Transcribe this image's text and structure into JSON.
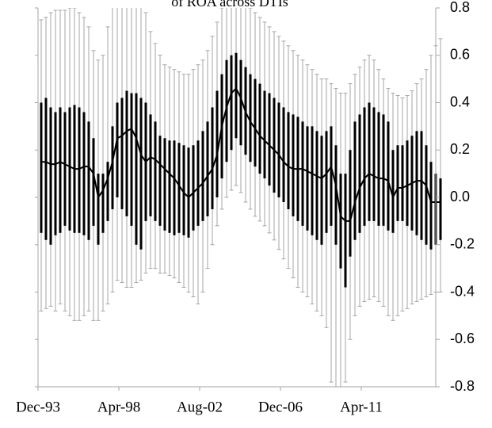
{
  "chart_data": {
    "type": "box",
    "title": "of ROA across DTIs",
    "categories": [
      "Dec-93",
      null,
      null,
      null,
      null,
      null,
      null,
      null,
      null,
      null,
      null,
      null,
      null,
      null,
      null,
      null,
      null,
      "Apr-98",
      null,
      null,
      null,
      null,
      null,
      null,
      null,
      null,
      null,
      null,
      null,
      null,
      null,
      null,
      null,
      null,
      "Aug-02",
      null,
      null,
      null,
      null,
      null,
      null,
      null,
      null,
      null,
      null,
      null,
      null,
      null,
      null,
      null,
      null,
      "Dec-06",
      null,
      null,
      null,
      null,
      null,
      null,
      null,
      null,
      null,
      null,
      null,
      null,
      null,
      null,
      null,
      null,
      "Apr-11",
      null,
      null,
      null,
      null,
      null,
      null,
      null,
      null,
      null,
      null,
      null,
      null,
      null,
      null,
      null,
      null
    ],
    "low": [
      -0.48,
      -0.47,
      -0.46,
      -0.48,
      -0.45,
      -0.48,
      -0.5,
      -0.52,
      -0.52,
      -0.5,
      -0.48,
      -0.52,
      -0.52,
      -0.48,
      -0.45,
      -0.4,
      -0.35,
      -0.36,
      -0.38,
      -0.38,
      -0.36,
      -0.35,
      -0.32,
      -0.3,
      -0.3,
      -0.32,
      -0.32,
      -0.33,
      -0.34,
      -0.36,
      -0.38,
      -0.4,
      -0.42,
      -0.45,
      -0.4,
      -0.3,
      -0.2,
      -0.12,
      -0.05,
      0.0,
      0.03,
      0.05,
      0.02,
      -0.02,
      -0.05,
      -0.08,
      -0.1,
      -0.12,
      -0.15,
      -0.18,
      -0.22,
      -0.26,
      -0.3,
      -0.34,
      -0.38,
      -0.4,
      -0.42,
      -0.45,
      -0.48,
      -0.5,
      -0.55,
      -0.78,
      -0.8,
      -0.8,
      -0.78,
      -0.6,
      -0.5,
      -0.46,
      -0.44,
      -0.43,
      -0.42,
      -0.44,
      -0.46,
      -0.5,
      -0.52,
      -0.5,
      -0.48,
      -0.47,
      -0.45,
      -0.44,
      -0.43,
      -0.42,
      -0.41,
      -0.4,
      -0.4
    ],
    "q1": [
      -0.15,
      -0.18,
      -0.2,
      -0.16,
      -0.15,
      -0.12,
      -0.14,
      -0.15,
      -0.15,
      -0.16,
      -0.18,
      -0.12,
      -0.2,
      -0.15,
      -0.1,
      -0.05,
      0.0,
      -0.05,
      -0.08,
      -0.12,
      -0.2,
      -0.22,
      -0.1,
      -0.08,
      -0.1,
      -0.12,
      -0.14,
      -0.15,
      -0.16,
      -0.15,
      -0.16,
      -0.17,
      -0.14,
      -0.12,
      -0.1,
      -0.08,
      -0.05,
      0.0,
      0.08,
      0.15,
      0.2,
      0.25,
      0.22,
      0.18,
      0.15,
      0.13,
      0.1,
      0.08,
      0.05,
      0.02,
      0.0,
      -0.02,
      -0.05,
      -0.08,
      -0.1,
      -0.12,
      -0.14,
      -0.16,
      -0.18,
      -0.2,
      -0.15,
      -0.12,
      -0.2,
      -0.3,
      -0.38,
      -0.25,
      -0.18,
      -0.15,
      -0.12,
      -0.1,
      -0.1,
      -0.12,
      -0.12,
      -0.14,
      -0.15,
      -0.1,
      -0.1,
      -0.12,
      -0.14,
      -0.16,
      -0.18,
      -0.2,
      -0.22,
      -0.2,
      -0.18
    ],
    "median": [
      0.15,
      0.15,
      0.14,
      0.14,
      0.15,
      0.14,
      0.13,
      0.12,
      0.12,
      0.13,
      0.13,
      0.1,
      0.0,
      0.03,
      0.08,
      0.15,
      0.25,
      0.26,
      0.28,
      0.29,
      0.25,
      0.18,
      0.15,
      0.17,
      0.16,
      0.14,
      0.12,
      0.1,
      0.08,
      0.05,
      0.02,
      0.0,
      0.02,
      0.04,
      0.06,
      0.09,
      0.12,
      0.18,
      0.3,
      0.38,
      0.44,
      0.46,
      0.42,
      0.36,
      0.32,
      0.29,
      0.26,
      0.24,
      0.22,
      0.2,
      0.18,
      0.15,
      0.13,
      0.12,
      0.12,
      0.12,
      0.11,
      0.1,
      0.09,
      0.08,
      0.1,
      0.13,
      0.05,
      -0.08,
      -0.1,
      -0.1,
      -0.02,
      0.04,
      0.08,
      0.1,
      0.09,
      0.08,
      0.08,
      0.07,
      0.0,
      0.04,
      0.04,
      0.05,
      0.06,
      0.07,
      0.07,
      0.05,
      -0.02,
      -0.02,
      -0.02
    ],
    "q3": [
      0.4,
      0.42,
      0.38,
      0.36,
      0.38,
      0.36,
      0.38,
      0.39,
      0.38,
      0.36,
      0.32,
      0.25,
      0.1,
      0.1,
      0.15,
      0.3,
      0.4,
      0.42,
      0.45,
      0.44,
      0.44,
      0.42,
      0.4,
      0.35,
      0.32,
      0.26,
      0.25,
      0.24,
      0.24,
      0.23,
      0.22,
      0.21,
      0.22,
      0.24,
      0.28,
      0.32,
      0.38,
      0.45,
      0.52,
      0.58,
      0.6,
      0.61,
      0.58,
      0.55,
      0.52,
      0.5,
      0.48,
      0.45,
      0.44,
      0.42,
      0.4,
      0.38,
      0.36,
      0.35,
      0.34,
      0.32,
      0.3,
      0.3,
      0.28,
      0.26,
      0.28,
      0.3,
      0.22,
      0.1,
      0.1,
      0.2,
      0.32,
      0.35,
      0.38,
      0.4,
      0.38,
      0.36,
      0.35,
      0.32,
      0.2,
      0.22,
      0.22,
      0.24,
      0.26,
      0.28,
      0.28,
      0.22,
      0.15,
      0.1,
      0.08
    ],
    "high": [
      0.75,
      0.76,
      0.78,
      0.79,
      0.79,
      0.79,
      0.8,
      0.8,
      0.78,
      0.76,
      0.72,
      0.62,
      0.58,
      0.6,
      0.72,
      0.85,
      0.85,
      0.85,
      0.85,
      0.85,
      0.85,
      0.82,
      0.78,
      0.7,
      0.65,
      0.6,
      0.56,
      0.55,
      0.54,
      0.53,
      0.52,
      0.52,
      0.54,
      0.56,
      0.58,
      0.62,
      0.68,
      0.74,
      0.8,
      0.85,
      0.85,
      0.85,
      0.85,
      0.82,
      0.8,
      0.78,
      0.76,
      0.74,
      0.72,
      0.7,
      0.68,
      0.66,
      0.64,
      0.62,
      0.6,
      0.58,
      0.56,
      0.54,
      0.52,
      0.5,
      0.5,
      0.48,
      0.46,
      0.44,
      0.44,
      0.48,
      0.52,
      0.55,
      0.58,
      0.6,
      0.58,
      0.54,
      0.5,
      0.46,
      0.44,
      0.43,
      0.42,
      0.43,
      0.45,
      0.48,
      0.5,
      0.54,
      0.6,
      0.64,
      0.67
    ],
    "ylim": [
      -0.8,
      0.8
    ],
    "yticks": [
      {
        "value": -0.8,
        "label": "-0.8"
      },
      {
        "value": -0.6,
        "label": "-0.6"
      },
      {
        "value": -0.4,
        "label": "-0.4"
      },
      {
        "value": -0.2,
        "label": "-0.2"
      },
      {
        "value": 0,
        "label": "0.0"
      },
      {
        "value": 0.2,
        "label": "0.2"
      },
      {
        "value": 0.4,
        "label": "0.4"
      },
      {
        "value": 0.6,
        "label": "0.6"
      },
      {
        "value": 0.8,
        "label": "0.8"
      }
    ],
    "whisker_color": "#a6a6a6",
    "box_color": "#000000",
    "line_color": "#000000"
  }
}
